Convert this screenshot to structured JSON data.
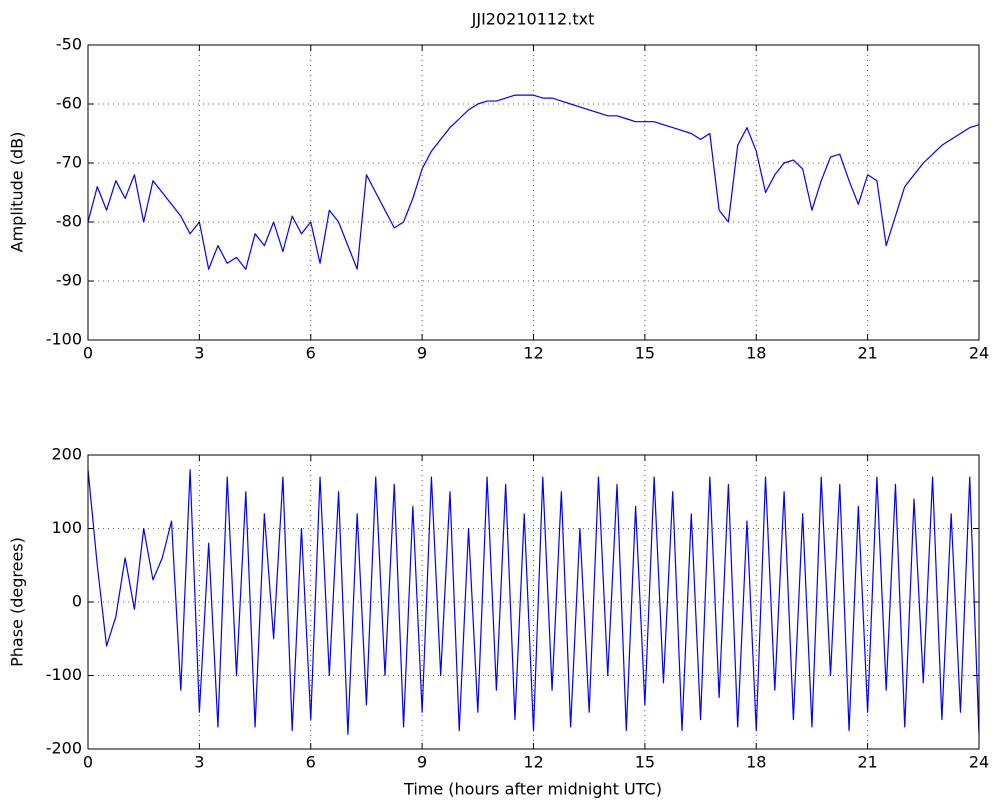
{
  "chart_data": [
    {
      "type": "line",
      "title": "JJI20210112.txt",
      "y_label": "Amplitude (dB)",
      "x": [
        0,
        0.25,
        0.5,
        0.75,
        1,
        1.25,
        1.5,
        1.75,
        2,
        2.25,
        2.5,
        2.75,
        3,
        3.25,
        3.5,
        3.75,
        4,
        4.25,
        4.5,
        4.75,
        5,
        5.25,
        5.5,
        5.75,
        6,
        6.25,
        6.5,
        6.75,
        7,
        7.25,
        7.5,
        7.75,
        8,
        8.25,
        8.5,
        8.75,
        9,
        9.25,
        9.5,
        9.75,
        10,
        10.25,
        10.5,
        10.75,
        11,
        11.25,
        11.5,
        11.75,
        12,
        12.25,
        12.5,
        12.75,
        13,
        13.25,
        13.5,
        13.75,
        14,
        14.25,
        14.5,
        14.75,
        15,
        15.25,
        15.5,
        15.75,
        16,
        16.25,
        16.5,
        16.75,
        17,
        17.25,
        17.5,
        17.75,
        18,
        18.25,
        18.5,
        18.75,
        19,
        19.25,
        19.5,
        19.75,
        20,
        20.25,
        20.5,
        20.75,
        21,
        21.25,
        21.5,
        21.75,
        22,
        22.25,
        22.5,
        22.75,
        23,
        23.25,
        23.5,
        23.75,
        24
      ],
      "values": [
        -80,
        -74,
        -78,
        -73,
        -76,
        -72,
        -80,
        -73,
        -75,
        -77,
        -79,
        -82,
        -80,
        -88,
        -84,
        -87,
        -86,
        -88,
        -82,
        -84,
        -80,
        -85,
        -79,
        -82,
        -80,
        -87,
        -78,
        -80,
        -84,
        -88,
        -72,
        -75,
        -78,
        -81,
        -80,
        -76,
        -71,
        -68,
        -66,
        -64,
        -62.5,
        -61,
        -60,
        -59.5,
        -59.5,
        -59,
        -58.5,
        -58.5,
        -58.5,
        -59,
        -59,
        -59.5,
        -60,
        -60.5,
        -61,
        -61.5,
        -62,
        -62,
        -62.5,
        -63,
        -63,
        -63,
        -63.5,
        -64,
        -64.5,
        -65,
        -66,
        -65,
        -78,
        -80,
        -67,
        -64,
        -68,
        -75,
        -72,
        -70,
        -69.5,
        -71,
        -78,
        -73,
        -69,
        -68.5,
        -73,
        -77,
        -72,
        -73,
        -84,
        -79,
        -74,
        -72,
        -70,
        -68.5,
        -67,
        -66,
        -65,
        -64,
        -63.5
      ],
      "color": "#0000ff",
      "xlim": [
        0,
        24
      ],
      "xticks": [
        0,
        3,
        6,
        9,
        12,
        15,
        18,
        21,
        24
      ],
      "ylim": [
        -100,
        -50
      ],
      "yticks": [
        -100,
        -90,
        -80,
        -70,
        -60,
        -50
      ],
      "grid": true
    },
    {
      "type": "line",
      "x_label": "Time (hours after midnight UTC)",
      "y_label": "Phase (degrees)",
      "x": [
        0,
        0.25,
        0.5,
        0.75,
        1,
        1.25,
        1.5,
        1.75,
        2,
        2.25,
        2.5,
        2.75,
        3,
        3.25,
        3.5,
        3.75,
        4,
        4.25,
        4.5,
        4.75,
        5,
        5.25,
        5.5,
        5.75,
        6,
        6.25,
        6.5,
        6.75,
        7,
        7.25,
        7.5,
        7.75,
        8,
        8.25,
        8.5,
        8.75,
        9,
        9.25,
        9.5,
        9.75,
        10,
        10.25,
        10.5,
        10.75,
        11,
        11.25,
        11.5,
        11.75,
        12,
        12.25,
        12.5,
        12.75,
        13,
        13.25,
        13.5,
        13.75,
        14,
        14.25,
        14.5,
        14.75,
        15,
        15.25,
        15.5,
        15.75,
        16,
        16.25,
        16.5,
        16.75,
        17,
        17.25,
        17.5,
        17.75,
        18,
        18.25,
        18.5,
        18.75,
        19,
        19.25,
        19.5,
        19.75,
        20,
        20.25,
        20.5,
        20.75,
        21,
        21.25,
        21.5,
        21.75,
        22,
        22.25,
        22.5,
        22.75,
        23,
        23.25,
        23.5,
        23.75,
        24
      ],
      "values": [
        180,
        50,
        -60,
        -20,
        60,
        -10,
        100,
        30,
        60,
        110,
        -120,
        180,
        -150,
        80,
        -170,
        170,
        -100,
        150,
        -170,
        120,
        -50,
        170,
        -175,
        100,
        -160,
        170,
        -100,
        150,
        -180,
        120,
        -140,
        170,
        -100,
        160,
        -170,
        130,
        -150,
        170,
        -100,
        150,
        -175,
        100,
        -150,
        170,
        -120,
        160,
        -160,
        120,
        -175,
        170,
        -120,
        150,
        -170,
        100,
        -150,
        170,
        -100,
        160,
        -175,
        130,
        -140,
        170,
        -110,
        150,
        -175,
        120,
        -160,
        170,
        -130,
        160,
        -170,
        110,
        -175,
        170,
        -120,
        150,
        -160,
        120,
        -170,
        170,
        -100,
        160,
        -175,
        130,
        -150,
        170,
        -120,
        160,
        -170,
        140,
        -110,
        170,
        -160,
        120,
        -150,
        170,
        -180
      ],
      "color": "#0000ff",
      "xlim": [
        0,
        24
      ],
      "xticks": [
        0,
        3,
        6,
        9,
        12,
        15,
        18,
        21,
        24
      ],
      "ylim": [
        -200,
        200
      ],
      "yticks": [
        -200,
        -100,
        0,
        100,
        200
      ],
      "grid": true
    }
  ]
}
